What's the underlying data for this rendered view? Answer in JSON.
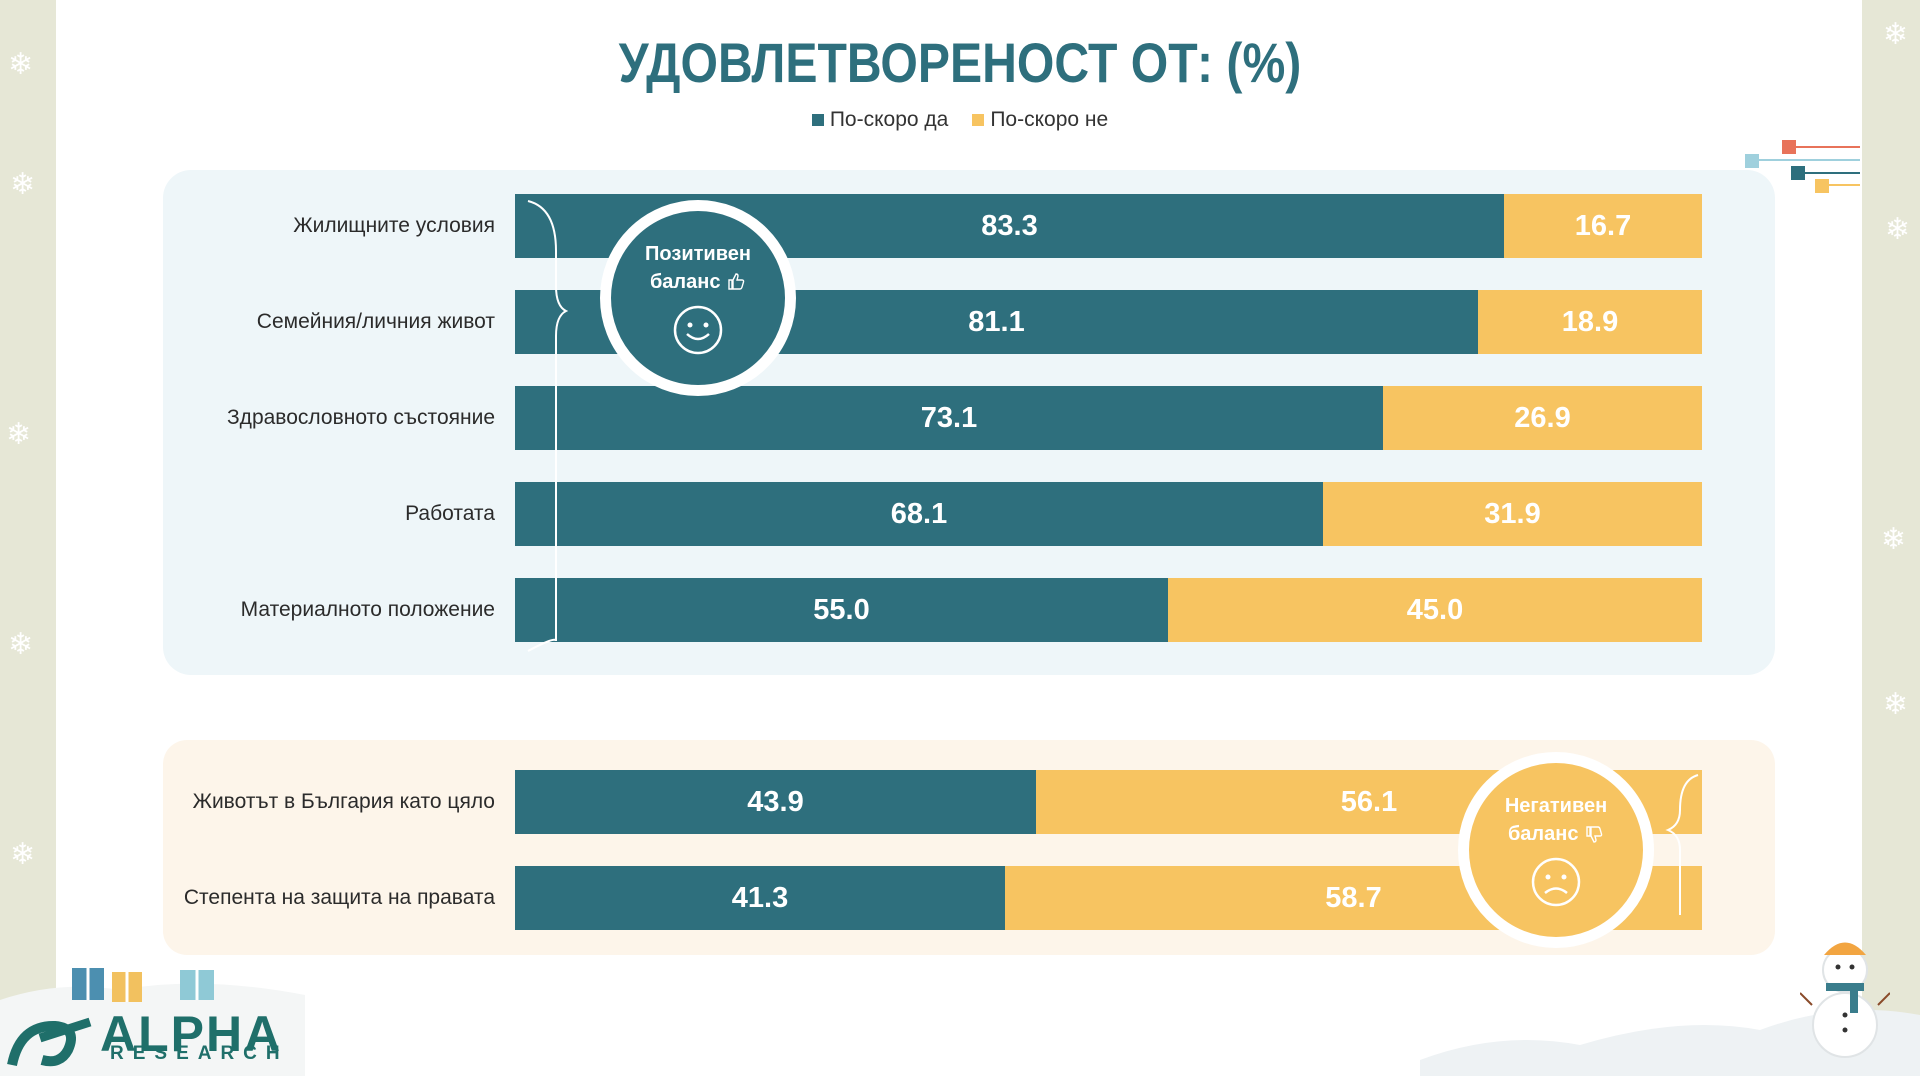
{
  "title": "УДОВЛЕТВОРЕНОСТ ОТ: (%)",
  "legend": [
    {
      "label": "По-скоро да",
      "color": "#2e6f7d"
    },
    {
      "label": "По-скоро не",
      "color": "#f7c461"
    }
  ],
  "badges": {
    "positive": {
      "line1": "Позитивен",
      "line2": "баланс",
      "icon": "thumbs-up-icon",
      "face": "smile-face-icon"
    },
    "negative": {
      "line1": "Негативен",
      "line2": "баланс",
      "icon": "thumbs-down-icon",
      "face": "sad-face-icon"
    }
  },
  "logo": {
    "word": "ALPHA",
    "sub": "RESEARCH"
  },
  "chart_data": {
    "type": "bar",
    "orientation": "horizontal",
    "stacked": true,
    "title": "УДОВЛЕТВОРЕНОСТ ОТ: (%)",
    "xlim": [
      0,
      100
    ],
    "categories": [
      "Жилищните условия",
      "Семейния/личния живот",
      "Здравословното състояние",
      "Работата",
      "Материалното положение",
      "Животът в България като цяло",
      "Степента на защита на правата"
    ],
    "series": [
      {
        "name": "По-скоро да",
        "color": "#2e6f7d",
        "values": [
          83.3,
          81.1,
          73.1,
          68.1,
          55.0,
          43.9,
          41.3
        ]
      },
      {
        "name": "По-скоро не",
        "color": "#f7c461",
        "values": [
          16.7,
          18.9,
          26.9,
          31.9,
          45.0,
          56.1,
          58.7
        ]
      }
    ],
    "value_labels": {
      "yes": [
        "83.3",
        "81.1",
        "73.1",
        "68.1",
        "55.0",
        "43.9",
        "41.3"
      ],
      "no": [
        "16.7",
        "18.9",
        "26.9",
        "31.9",
        "45.0",
        "56.1",
        "58.7"
      ]
    },
    "legend_position": "top-center"
  }
}
